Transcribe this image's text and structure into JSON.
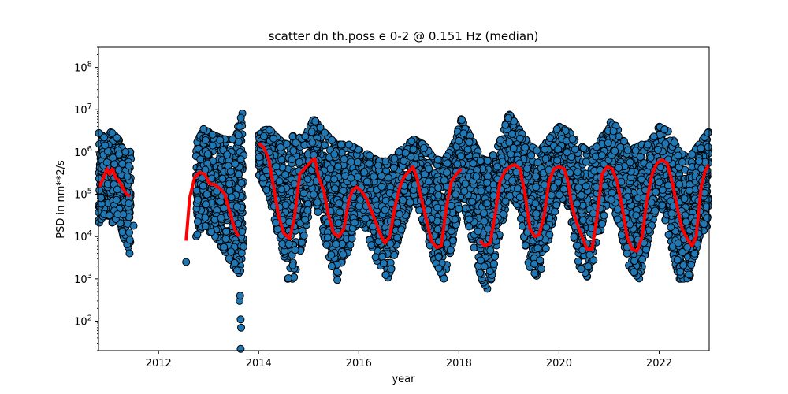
{
  "chart_data": {
    "type": "scatter",
    "title": "scatter dn th.poss e 0-2 @ 0.151 Hz (median)",
    "xlabel": "year",
    "ylabel": "PSD in nm**2/s",
    "yscale": "log",
    "xlim": [
      2010.8,
      2023.0
    ],
    "ylim": [
      20,
      300000000
    ],
    "x_ticks": [
      2012,
      2014,
      2016,
      2018,
      2020,
      2022
    ],
    "x_tick_labels": [
      "2012",
      "2014",
      "2016",
      "2018",
      "2020",
      "2022"
    ],
    "y_ticks": [
      100,
      1000,
      10000,
      100000,
      1000000,
      10000000,
      100000000
    ],
    "grid": false,
    "colors": {
      "points": "#1f77b4",
      "point_edge": "#000000",
      "median": "#ff0000"
    },
    "scatter_segments": [
      {
        "x_range": [
          2010.8,
          2011.45
        ],
        "envelope": [
          [
            2010.8,
            20000,
            3000000
          ],
          [
            2010.95,
            40000,
            2000000
          ],
          [
            2011.05,
            20000,
            3000000
          ],
          [
            2011.2,
            30000,
            2000000
          ],
          [
            2011.3,
            10000,
            1000000
          ],
          [
            2011.45,
            4000,
            1000000
          ]
        ]
      },
      {
        "x_range": [
          2012.75,
          2013.7
        ],
        "envelope": [
          [
            2012.75,
            10000,
            1500000
          ],
          [
            2012.9,
            20000,
            3500000
          ],
          [
            2013.1,
            10000,
            2500000
          ],
          [
            2013.3,
            5000,
            2000000
          ],
          [
            2013.5,
            2000,
            2000000
          ],
          [
            2013.7,
            1000,
            10000000
          ]
        ]
      },
      {
        "x_range": [
          2014.0,
          2022.99
        ],
        "envelope": [
          [
            2014.0,
            300000,
            3000000
          ],
          [
            2014.2,
            100000,
            3500000
          ],
          [
            2014.4,
            10000,
            2000000
          ],
          [
            2014.55,
            1000,
            1500000
          ],
          [
            2014.7,
            1000,
            2500000
          ],
          [
            2014.9,
            10000,
            2000000
          ],
          [
            2015.1,
            100000,
            6000000
          ],
          [
            2015.3,
            10000,
            3000000
          ],
          [
            2015.55,
            800,
            1500000
          ],
          [
            2015.8,
            5000,
            1500000
          ],
          [
            2015.95,
            20000,
            1200000
          ],
          [
            2016.1,
            20000,
            1000000
          ],
          [
            2016.4,
            2000,
            600000
          ],
          [
            2016.6,
            1000,
            600000
          ],
          [
            2016.8,
            10000,
            1000000
          ],
          [
            2017.1,
            100000,
            2000000
          ],
          [
            2017.3,
            20000,
            1500000
          ],
          [
            2017.5,
            3000,
            700000
          ],
          [
            2017.7,
            1000,
            600000
          ],
          [
            2017.9,
            10000,
            1500000
          ],
          [
            2018.05,
            100000,
            6000000
          ],
          [
            2018.45,
            1000,
            700000
          ],
          [
            2018.6,
            500,
            600000
          ],
          [
            2018.8,
            10000,
            1500000
          ],
          [
            2019.0,
            100000,
            8000000
          ],
          [
            2019.2,
            50000,
            3500000
          ],
          [
            2019.4,
            2000,
            1500000
          ],
          [
            2019.6,
            1000,
            1000000
          ],
          [
            2019.8,
            10000,
            2000000
          ],
          [
            2020.0,
            100000,
            4000000
          ],
          [
            2020.2,
            50000,
            3000000
          ],
          [
            2020.4,
            2000,
            1500000
          ],
          [
            2020.6,
            1000,
            1000000
          ],
          [
            2020.8,
            10000,
            1500000
          ],
          [
            2021.0,
            100000,
            8000000
          ],
          [
            2021.2,
            20000,
            3000000
          ],
          [
            2021.4,
            2000,
            1000000
          ],
          [
            2021.6,
            1000,
            1500000
          ],
          [
            2021.8,
            10000,
            1500000
          ],
          [
            2022.0,
            100000,
            4000000
          ],
          [
            2022.2,
            10000,
            3000000
          ],
          [
            2022.4,
            1000,
            1000000
          ],
          [
            2022.6,
            1000,
            700000
          ],
          [
            2022.8,
            10000,
            1500000
          ],
          [
            2022.99,
            20000,
            3000000
          ]
        ]
      }
    ],
    "outliers": [
      {
        "x": 2012.55,
        "y": 2500
      },
      {
        "x": 2013.62,
        "y": 300
      },
      {
        "x": 2013.63,
        "y": 400
      },
      {
        "x": 2013.64,
        "y": 110
      },
      {
        "x": 2013.65,
        "y": 70
      },
      {
        "x": 2013.64,
        "y": 22
      },
      {
        "x": 2013.62,
        "y": 4000000
      },
      {
        "x": 2013.6,
        "y": 2500000
      },
      {
        "x": 2011.5,
        "y": 18000
      },
      {
        "x": 2011.42,
        "y": 4000
      },
      {
        "x": 2021.3,
        "y": 1800000
      }
    ],
    "series": [
      {
        "values": [
          [
            2010.82,
            150000
          ],
          [
            2010.9,
            250000
          ],
          [
            2010.97,
            400000
          ],
          [
            2011.02,
            300000
          ],
          [
            2011.08,
            400000
          ],
          [
            2011.14,
            250000
          ],
          [
            2011.22,
            200000
          ],
          [
            2011.3,
            130000
          ],
          [
            2011.36,
            100000
          ],
          [
            2011.43,
            90000
          ]
        ]
      },
      {
        "values": [
          [
            2012.55,
            8000
          ],
          [
            2012.62,
            80000
          ],
          [
            2012.72,
            250000
          ],
          [
            2012.82,
            330000
          ],
          [
            2012.92,
            300000
          ],
          [
            2013.02,
            180000
          ],
          [
            2013.12,
            170000
          ],
          [
            2013.22,
            140000
          ],
          [
            2013.32,
            100000
          ],
          [
            2013.42,
            40000
          ],
          [
            2013.52,
            15000
          ],
          [
            2013.6,
            10000
          ]
        ]
      },
      {
        "values": [
          [
            2014.0,
            1600000
          ],
          [
            2014.1,
            1300000
          ],
          [
            2014.2,
            700000
          ],
          [
            2014.3,
            150000
          ],
          [
            2014.4,
            30000
          ],
          [
            2014.5,
            12000
          ],
          [
            2014.62,
            9000
          ],
          [
            2014.72,
            30000
          ],
          [
            2014.82,
            300000
          ],
          [
            2014.95,
            450000
          ],
          [
            2015.05,
            600000
          ],
          [
            2015.12,
            700000
          ],
          [
            2015.2,
            250000
          ],
          [
            2015.3,
            120000
          ],
          [
            2015.4,
            30000
          ],
          [
            2015.5,
            12000
          ],
          [
            2015.6,
            10000
          ],
          [
            2015.7,
            15000
          ],
          [
            2015.8,
            70000
          ],
          [
            2015.87,
            120000
          ],
          [
            2015.95,
            150000
          ],
          [
            2016.05,
            120000
          ],
          [
            2016.15,
            80000
          ],
          [
            2016.25,
            40000
          ],
          [
            2016.35,
            20000
          ],
          [
            2016.45,
            10000
          ],
          [
            2016.52,
            7000
          ],
          [
            2016.62,
            10000
          ],
          [
            2016.72,
            50000
          ],
          [
            2016.82,
            150000
          ],
          [
            2016.9,
            250000
          ],
          [
            2017.0,
            350000
          ],
          [
            2017.08,
            450000
          ],
          [
            2017.16,
            250000
          ],
          [
            2017.25,
            80000
          ],
          [
            2017.35,
            25000
          ],
          [
            2017.45,
            8000
          ],
          [
            2017.55,
            5500
          ],
          [
            2017.65,
            6000
          ],
          [
            2017.75,
            50000
          ],
          [
            2017.85,
            200000
          ],
          [
            2017.95,
            300000
          ],
          [
            2018.05,
            400000
          ]
        ]
      },
      {
        "values": [
          [
            2018.42,
            8000
          ],
          [
            2018.52,
            6000
          ],
          [
            2018.62,
            7000
          ],
          [
            2018.72,
            30000
          ],
          [
            2018.82,
            200000
          ],
          [
            2018.92,
            350000
          ],
          [
            2019.02,
            450000
          ],
          [
            2019.12,
            500000
          ],
          [
            2019.22,
            400000
          ],
          [
            2019.32,
            100000
          ],
          [
            2019.42,
            15000
          ],
          [
            2019.52,
            10000
          ],
          [
            2019.6,
            11000
          ],
          [
            2019.7,
            30000
          ],
          [
            2019.8,
            200000
          ],
          [
            2019.9,
            400000
          ],
          [
            2020.0,
            450000
          ],
          [
            2020.1,
            400000
          ],
          [
            2020.18,
            200000
          ],
          [
            2020.26,
            50000
          ],
          [
            2020.36,
            20000
          ],
          [
            2020.46,
            10000
          ],
          [
            2020.56,
            5000
          ],
          [
            2020.66,
            5000
          ],
          [
            2020.76,
            30000
          ],
          [
            2020.86,
            300000
          ],
          [
            2020.96,
            450000
          ],
          [
            2021.06,
            400000
          ],
          [
            2021.16,
            200000
          ],
          [
            2021.26,
            50000
          ],
          [
            2021.36,
            10000
          ],
          [
            2021.46,
            5000
          ],
          [
            2021.56,
            4500
          ],
          [
            2021.66,
            10000
          ],
          [
            2021.76,
            80000
          ],
          [
            2021.86,
            300000
          ],
          [
            2021.96,
            550000
          ],
          [
            2022.06,
            650000
          ],
          [
            2022.16,
            550000
          ],
          [
            2022.26,
            200000
          ],
          [
            2022.36,
            50000
          ],
          [
            2022.46,
            15000
          ],
          [
            2022.56,
            9000
          ],
          [
            2022.66,
            6000
          ],
          [
            2022.74,
            10000
          ],
          [
            2022.84,
            150000
          ],
          [
            2022.92,
            350000
          ],
          [
            2022.99,
            500000
          ]
        ]
      }
    ]
  }
}
